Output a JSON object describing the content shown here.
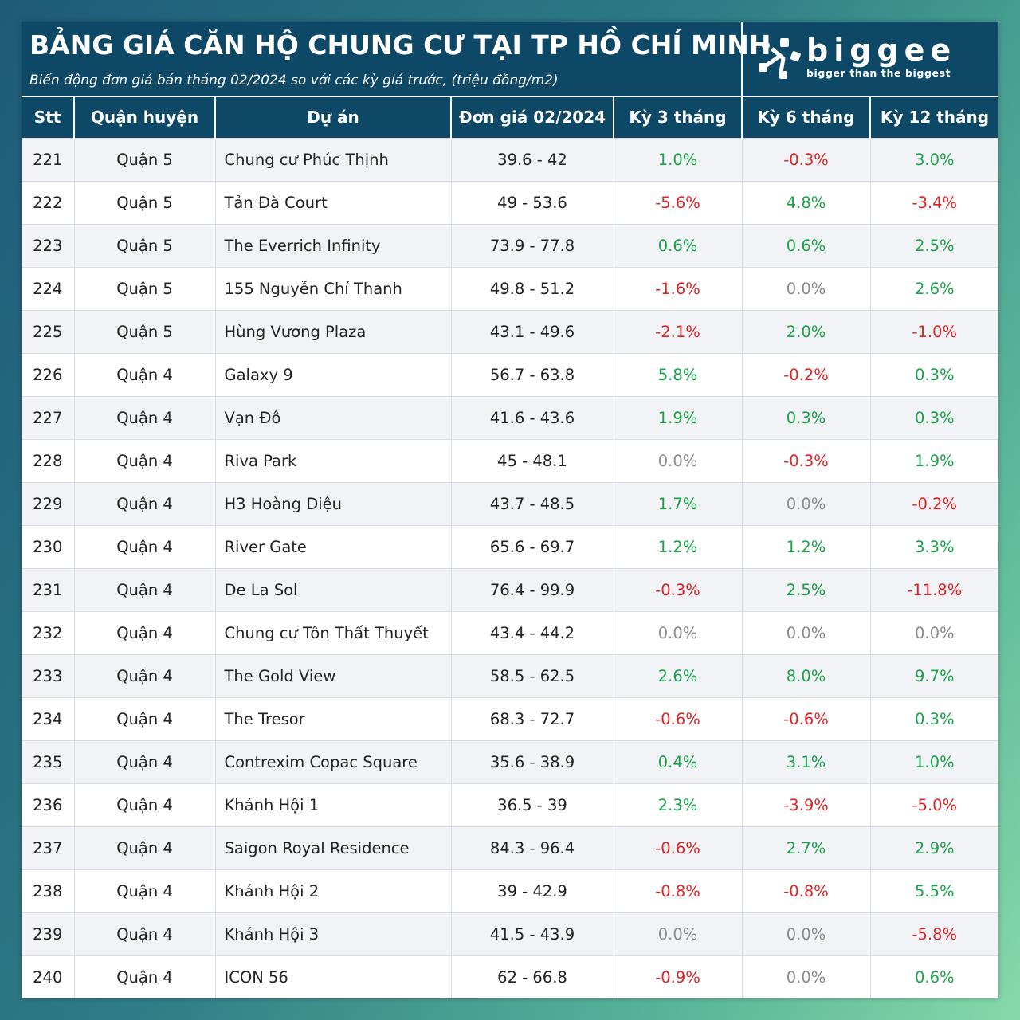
{
  "title": "BẢNG GIÁ CĂN HỘ CHUNG CƯ TẠI TP HỒ CHÍ MINH",
  "subtitle": "Biến động đơn giá bán tháng 02/2024 so với các kỳ giá trước, (triệu đồng/m2)",
  "logo": {
    "name": "biggee",
    "tagline": "bigger than the biggest",
    "icon": "biggee-logo-icon"
  },
  "colors": {
    "header_bg": "#0e4867",
    "positive": "#1aa34a",
    "negative": "#e02424",
    "neutral": "#8a8a8a"
  },
  "table": {
    "columns": [
      "Stt",
      "Quận huyện",
      "Dự án",
      "Đơn giá 02/2024",
      "Kỳ 3 tháng",
      "Kỳ 6 tháng",
      "Kỳ 12 tháng"
    ],
    "rows": [
      {
        "stt": "221",
        "district": "Quận 5",
        "project": "Chung cư Phúc Thịnh",
        "price": "39.6 - 42",
        "k3": "1.0%",
        "k6": "-0.3%",
        "k12": "3.0%"
      },
      {
        "stt": "222",
        "district": "Quận 5",
        "project": "Tản Đà Court",
        "price": "49 - 53.6",
        "k3": "-5.6%",
        "k6": "4.8%",
        "k12": "-3.4%"
      },
      {
        "stt": "223",
        "district": "Quận 5",
        "project": "The Everrich Infinity",
        "price": "73.9 - 77.8",
        "k3": "0.6%",
        "k6": "0.6%",
        "k12": "2.5%"
      },
      {
        "stt": "224",
        "district": "Quận 5",
        "project": "155 Nguyễn Chí Thanh",
        "price": "49.8 - 51.2",
        "k3": "-1.6%",
        "k6": "0.0%",
        "k12": "2.6%"
      },
      {
        "stt": "225",
        "district": "Quận 5",
        "project": "Hùng Vương Plaza",
        "price": "43.1 - 49.6",
        "k3": "-2.1%",
        "k6": "2.0%",
        "k12": "-1.0%"
      },
      {
        "stt": "226",
        "district": "Quận 4",
        "project": "Galaxy 9",
        "price": "56.7 - 63.8",
        "k3": "5.8%",
        "k6": "-0.2%",
        "k12": "0.3%"
      },
      {
        "stt": "227",
        "district": "Quận 4",
        "project": "Vạn Đô",
        "price": "41.6 - 43.6",
        "k3": "1.9%",
        "k6": "0.3%",
        "k12": "0.3%"
      },
      {
        "stt": "228",
        "district": "Quận 4",
        "project": "Riva Park",
        "price": "45 - 48.1",
        "k3": "0.0%",
        "k6": "-0.3%",
        "k12": "1.9%"
      },
      {
        "stt": "229",
        "district": "Quận 4",
        "project": "H3 Hoàng Diệu",
        "price": "43.7 - 48.5",
        "k3": "1.7%",
        "k6": "0.0%",
        "k12": "-0.2%"
      },
      {
        "stt": "230",
        "district": "Quận 4",
        "project": "River Gate",
        "price": "65.6 - 69.7",
        "k3": "1.2%",
        "k6": "1.2%",
        "k12": "3.3%"
      },
      {
        "stt": "231",
        "district": "Quận 4",
        "project": "De La Sol",
        "price": "76.4 - 99.9",
        "k3": "-0.3%",
        "k6": "2.5%",
        "k12": "-11.8%"
      },
      {
        "stt": "232",
        "district": "Quận 4",
        "project": "Chung cư Tôn Thất Thuyết",
        "price": "43.4 - 44.2",
        "k3": "0.0%",
        "k6": "0.0%",
        "k12": "0.0%"
      },
      {
        "stt": "233",
        "district": "Quận 4",
        "project": "The Gold View",
        "price": "58.5 - 62.5",
        "k3": "2.6%",
        "k6": "8.0%",
        "k12": "9.7%"
      },
      {
        "stt": "234",
        "district": "Quận 4",
        "project": "The Tresor",
        "price": "68.3 - 72.7",
        "k3": "-0.6%",
        "k6": "-0.6%",
        "k12": "0.3%"
      },
      {
        "stt": "235",
        "district": "Quận 4",
        "project": "Contrexim Copac Square",
        "price": "35.6 - 38.9",
        "k3": "0.4%",
        "k6": "3.1%",
        "k12": "1.0%"
      },
      {
        "stt": "236",
        "district": "Quận 4",
        "project": "Khánh Hội 1",
        "price": "36.5 - 39",
        "k3": "2.3%",
        "k6": "-3.9%",
        "k12": "-5.0%"
      },
      {
        "stt": "237",
        "district": "Quận 4",
        "project": "Saigon Royal Residence",
        "price": "84.3 - 96.4",
        "k3": "-0.6%",
        "k6": "2.7%",
        "k12": "2.9%"
      },
      {
        "stt": "238",
        "district": "Quận 4",
        "project": "Khánh Hội 2",
        "price": "39 - 42.9",
        "k3": "-0.8%",
        "k6": "-0.8%",
        "k12": "5.5%"
      },
      {
        "stt": "239",
        "district": "Quận 4",
        "project": "Khánh Hội 3",
        "price": "41.5 - 43.9",
        "k3": "0.0%",
        "k6": "0.0%",
        "k12": "-5.8%"
      },
      {
        "stt": "240",
        "district": "Quận 4",
        "project": "ICON 56",
        "price": "62 - 66.8",
        "k3": "-0.9%",
        "k6": "0.0%",
        "k12": "0.6%"
      }
    ]
  }
}
